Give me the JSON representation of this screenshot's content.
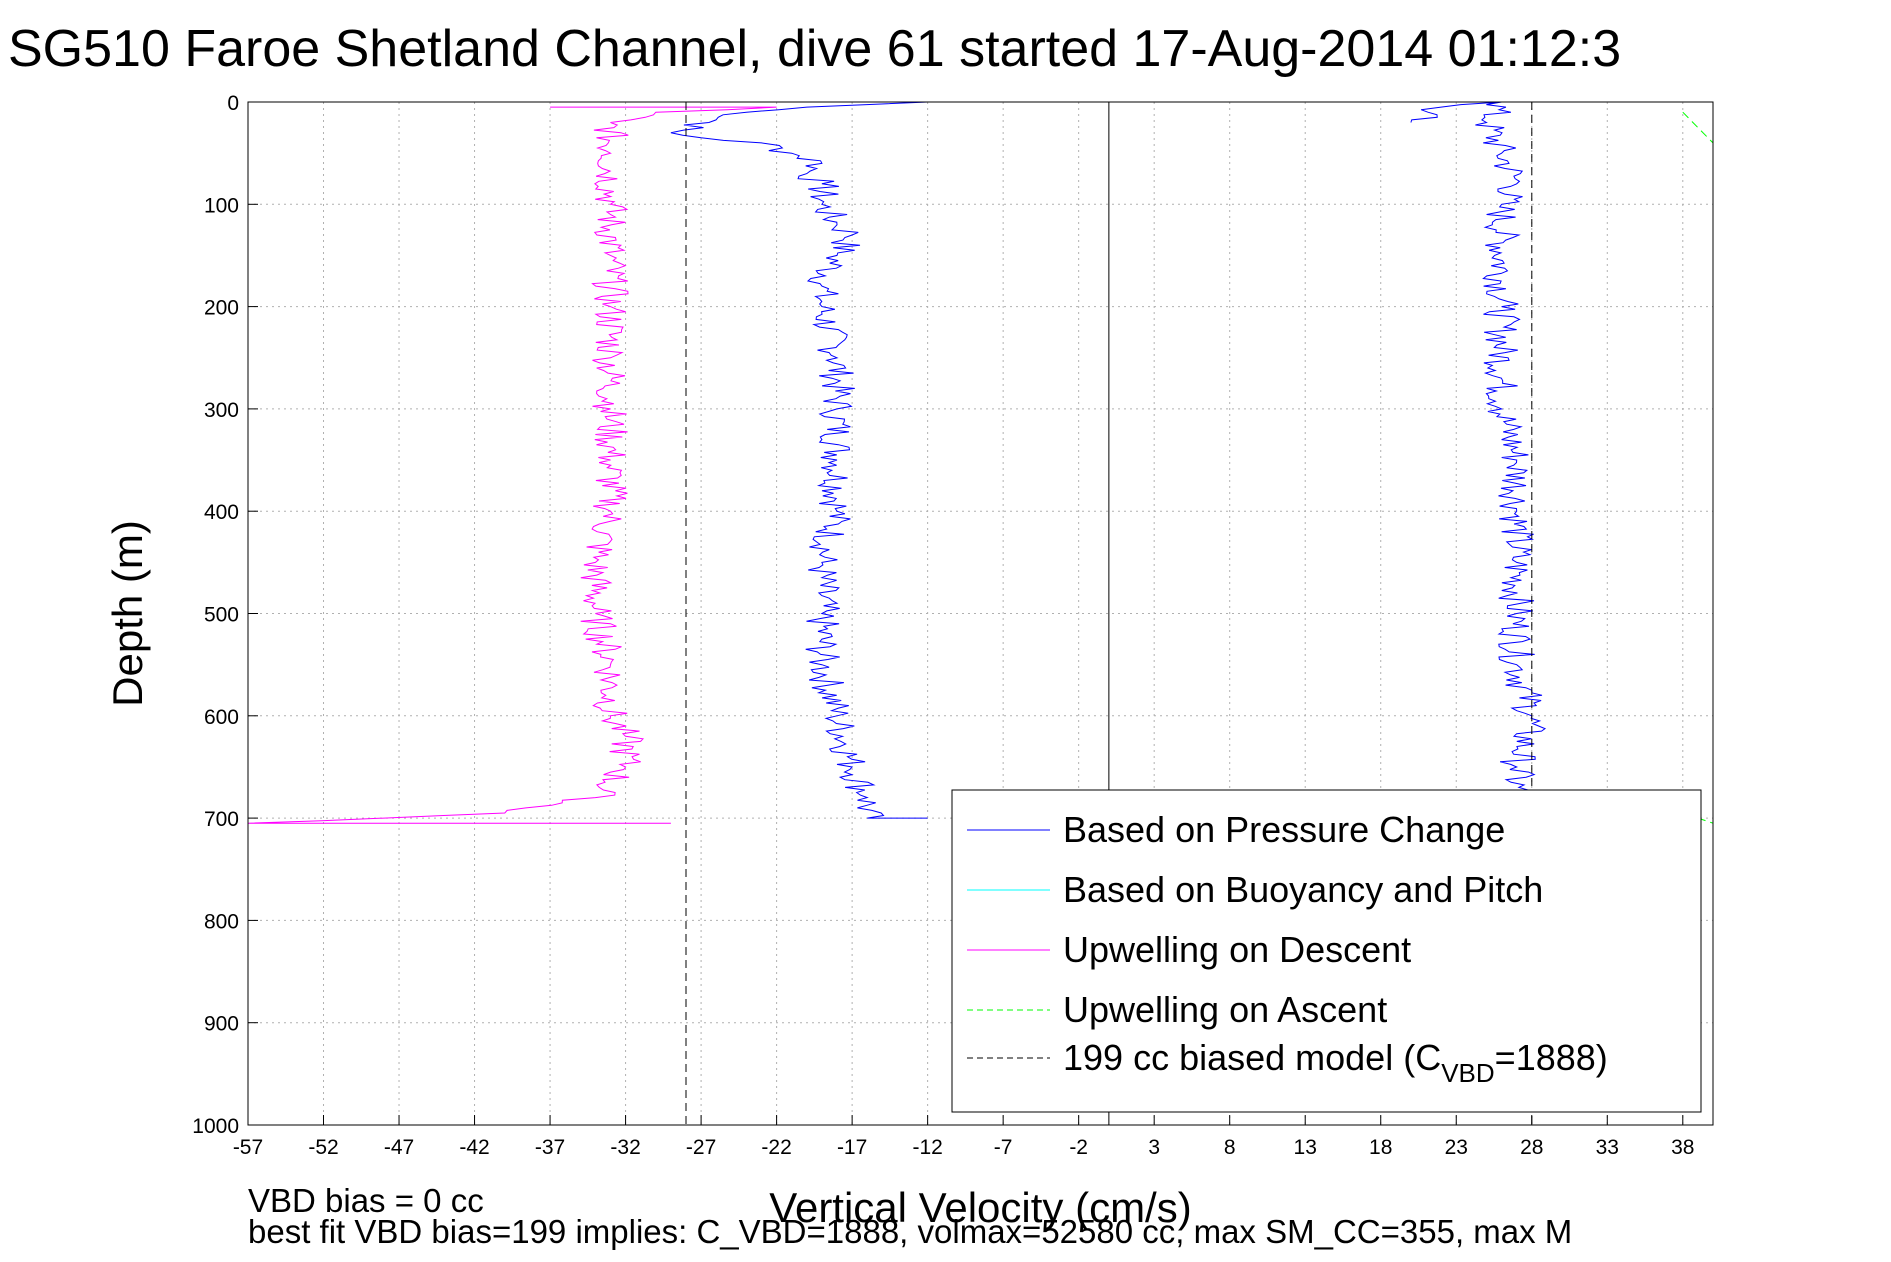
{
  "chart_data": {
    "type": "line",
    "title": "SG510 Faroe Shetland Channel, dive 61 started 17-Aug-2014 01:12:3",
    "xlabel": "Vertical Velocity (cm/s)",
    "ylabel": "Depth (m)",
    "xlim": [
      -57,
      40
    ],
    "ylim": [
      0,
      1000
    ],
    "y_reversed": true,
    "grid": true,
    "legend_position": "bottom-right",
    "x_ticks": [
      -57,
      -52,
      -47,
      -42,
      -37,
      -32,
      -27,
      -22,
      -17,
      -12,
      -7,
      -2,
      3,
      8,
      13,
      18,
      23,
      28,
      33,
      38
    ],
    "y_ticks": [
      0,
      100,
      200,
      300,
      400,
      500,
      600,
      700,
      800,
      900,
      1000
    ],
    "series": [
      {
        "name": "Based on Pressure Change",
        "color": "#0000ff",
        "style": "solid",
        "segments": [
          [
            [
              4,
              0
            ],
            [
              -12,
              0
            ],
            [
              -20,
              5
            ],
            [
              -24,
              10
            ],
            [
              -29,
              30
            ],
            [
              -27,
              35
            ],
            [
              -23,
              40
            ],
            [
              -21,
              50
            ],
            [
              -19,
              60
            ],
            [
              -20,
              70
            ],
            [
              -19,
              80
            ],
            [
              -19,
              100
            ],
            [
              -18,
              120
            ],
            [
              -17,
              130
            ],
            [
              -18,
              150
            ],
            [
              -19,
              180
            ],
            [
              -19,
              200
            ],
            [
              -18,
              250
            ],
            [
              -18,
              300
            ],
            [
              -18,
              350
            ],
            [
              -18,
              400
            ],
            [
              -19,
              450
            ],
            [
              -19,
              500
            ],
            [
              -19,
              550
            ],
            [
              -18,
              600
            ],
            [
              -17,
              650
            ],
            [
              -16,
              680
            ],
            [
              -16,
              700
            ],
            [
              -12,
              700
            ]
          ],
          [
            [
              20,
              20
            ],
            [
              22,
              5
            ],
            [
              26,
              0
            ],
            [
              25,
              20
            ],
            [
              26,
              50
            ],
            [
              27,
              80
            ],
            [
              26,
              100
            ],
            [
              26,
              200
            ],
            [
              26,
              300
            ],
            [
              27,
              350
            ],
            [
              27,
              400
            ],
            [
              27,
              450
            ],
            [
              27,
              500
            ],
            [
              27,
              550
            ],
            [
              28,
              600
            ],
            [
              27,
              650
            ],
            [
              27,
              680
            ]
          ]
        ]
      },
      {
        "name": "Based on Buoyancy and Pitch",
        "color": "#00ffff",
        "style": "solid",
        "segments": []
      },
      {
        "name": "Upwelling on Descent",
        "color": "#ff00ff",
        "style": "solid",
        "segments": [
          [
            [
              -37,
              5
            ],
            [
              -22,
              5
            ],
            [
              -30,
              10
            ],
            [
              -33,
              20
            ],
            [
              -33,
              50
            ],
            [
              -33,
              100
            ],
            [
              -33,
              150
            ],
            [
              -33,
              200
            ],
            [
              -33,
              250
            ],
            [
              -33,
              300
            ],
            [
              -33,
              350
            ],
            [
              -33,
              400
            ],
            [
              -34,
              450
            ],
            [
              -34,
              500
            ],
            [
              -33,
              550
            ],
            [
              -33,
              600
            ],
            [
              -32,
              620
            ],
            [
              -32,
              650
            ],
            [
              -34,
              680
            ],
            [
              -40,
              695
            ],
            [
              -48,
              700
            ],
            [
              -57,
              705
            ],
            [
              -29,
              705
            ]
          ]
        ]
      },
      {
        "name": "Upwelling on Ascent",
        "color": "#00ff00",
        "style": "dashed",
        "segments": [
          [
            [
              15,
              0
            ],
            [
              40,
              0
            ]
          ],
          [
            [
              38,
              10
            ],
            [
              40,
              40
            ]
          ],
          [
            [
              39,
              700
            ],
            [
              40,
              705
            ]
          ]
        ]
      },
      {
        "name": "199 cc biased model (C",
        "name_sub": "VBD",
        "name_suffix": "=1888)",
        "color": "#000000",
        "style": "dashed",
        "segments": [
          [
            [
              -28,
              0
            ],
            [
              -28,
              1000
            ]
          ],
          [
            [
              28,
              0
            ],
            [
              28,
              1000
            ]
          ]
        ]
      }
    ],
    "reference_line": {
      "x": 0,
      "from_depth": 0,
      "to_depth": 1000,
      "color": "#000000"
    }
  },
  "footnotes": {
    "line1": "VBD bias = 0 cc",
    "line2": "best fit VBD bias=199 implies: C_VBD=1888, volmax=52580 cc, max SM_CC=355, max M"
  }
}
